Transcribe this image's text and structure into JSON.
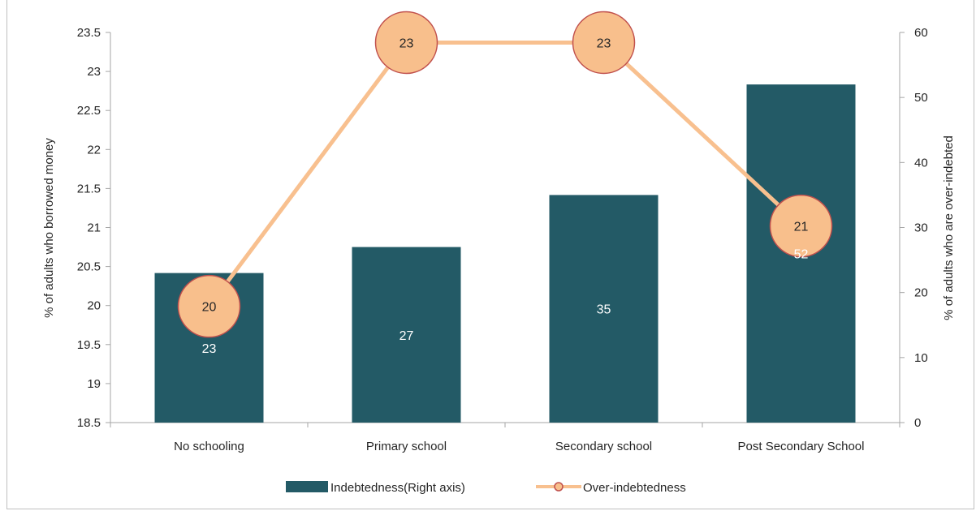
{
  "colors": {
    "bar": "#235a66",
    "line": "#f8c08f",
    "marker_fill": "#f8bf8c",
    "marker_edge": "#c0504d",
    "axis": "#a6a6a6",
    "text": "#262626"
  },
  "chart_data": {
    "type": "bar",
    "categories": [
      "No schooling",
      "Primary school",
      "Secondary school",
      "Post Secondary School"
    ],
    "series": [
      {
        "name": "Indebtedness(Right axis)",
        "type": "bar",
        "axis": "right",
        "values": [
          23,
          27,
          35,
          52
        ],
        "labels": [
          "23",
          "27",
          "35",
          "52"
        ]
      },
      {
        "name": "Over-indebtedness",
        "type": "line",
        "axis": "left",
        "values": [
          20,
          23,
          23,
          21
        ],
        "labels": [
          "20",
          "23",
          "23",
          "21"
        ],
        "plot_values": [
          19.99,
          23.37,
          23.37,
          21.02
        ]
      }
    ],
    "ylabel": "% of adults who borrowed money",
    "y2label": "% of adults who are over-indebted",
    "ylim": [
      18.5,
      23.5
    ],
    "y2lim": [
      0,
      60
    ],
    "yticks": [
      "18.5",
      "19",
      "19.5",
      "20",
      "20.5",
      "21",
      "21.5",
      "22",
      "22.5",
      "23",
      "23.5"
    ],
    "y2ticks": [
      "0",
      "10",
      "20",
      "30",
      "40",
      "50",
      "60"
    ],
    "legend_position": "bottom",
    "grid": false
  }
}
